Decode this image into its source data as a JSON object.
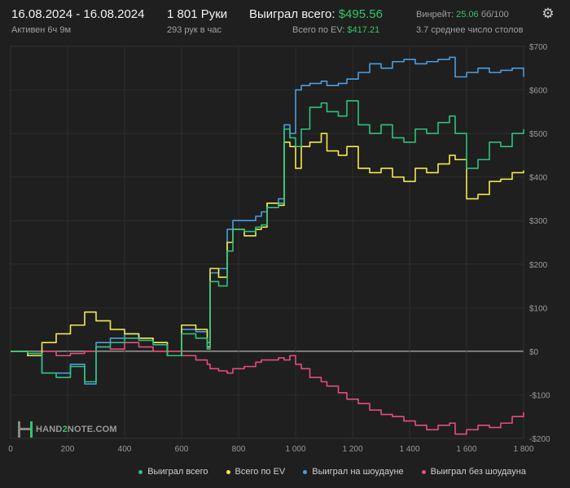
{
  "header": {
    "date_range": "16.08.2024 - 16.08.2024",
    "active": "Активен 6ч 9м",
    "hands": "1 801 Руки",
    "hands_per_hour": "293 рук в час",
    "won_total_label": "Выиграл всего:",
    "won_total_value": "$495.56",
    "ev_total_label": "Всего по EV:",
    "ev_total_value": "$417.21",
    "winrate_label": "Винрейт:",
    "winrate_value": "25.06",
    "winrate_unit": "бб/100",
    "avg_tables": "3.7 среднее число столов",
    "settings_icon": "gear-icon"
  },
  "logo": {
    "text_a": "HAND",
    "text_b": "2",
    "text_c": "NOTE.COM"
  },
  "colors": {
    "won_total": "#2ec27e",
    "ev_total": "#f3ea4a",
    "showdown": "#4a9ee0",
    "non_showdown": "#e64d7c",
    "zero_line": "#d8d8d8"
  },
  "chart_data": {
    "type": "line",
    "xlabel": "",
    "ylabel": "",
    "xlim": [
      0,
      1800
    ],
    "ylim": [
      -200,
      700
    ],
    "x_ticks": [
      0,
      200,
      400,
      600,
      800,
      1000,
      1200,
      1400,
      1600,
      1800
    ],
    "x_tick_labels": [
      "0",
      "200",
      "400",
      "600",
      "800",
      "1 000",
      "1 200",
      "1 400",
      "1 600",
      "1 800"
    ],
    "y_ticks": [
      -200,
      -100,
      0,
      100,
      200,
      300,
      400,
      500,
      600,
      700
    ],
    "y_tick_labels": [
      "-$200",
      "-$100",
      "$0",
      "$100",
      "$200",
      "$300",
      "$400",
      "$500",
      "$600",
      "$700"
    ],
    "legend_position": "bottom-right",
    "grid": true,
    "series": [
      {
        "name": "Выиграл всего",
        "x": [
          0,
          60,
          110,
          160,
          210,
          260,
          300,
          350,
          400,
          450,
          500,
          550,
          600,
          650,
          690,
          700,
          730,
          760,
          780,
          820,
          860,
          880,
          900,
          940,
          960,
          980,
          1000,
          1020,
          1050,
          1090,
          1110,
          1150,
          1180,
          1220,
          1260,
          1300,
          1340,
          1380,
          1420,
          1460,
          1500,
          1540,
          1560,
          1600,
          1640,
          1680,
          1720,
          1760,
          1800
        ],
        "values": [
          0,
          -5,
          -50,
          -60,
          -35,
          -70,
          10,
          20,
          30,
          25,
          15,
          -10,
          40,
          30,
          5,
          160,
          150,
          230,
          280,
          275,
          285,
          290,
          330,
          340,
          510,
          490,
          470,
          510,
          560,
          570,
          550,
          540,
          575,
          520,
          500,
          520,
          490,
          480,
          510,
          500,
          525,
          540,
          500,
          420,
          440,
          480,
          470,
          500,
          510
        ]
      },
      {
        "name": "Всего по EV",
        "x": [
          0,
          60,
          110,
          160,
          210,
          260,
          300,
          350,
          400,
          450,
          500,
          550,
          600,
          650,
          690,
          700,
          730,
          760,
          780,
          820,
          860,
          880,
          900,
          940,
          960,
          980,
          1000,
          1020,
          1050,
          1090,
          1110,
          1150,
          1180,
          1220,
          1260,
          1300,
          1340,
          1380,
          1420,
          1460,
          1500,
          1540,
          1560,
          1600,
          1640,
          1680,
          1720,
          1760,
          1800
        ],
        "values": [
          0,
          -10,
          20,
          40,
          60,
          90,
          70,
          50,
          40,
          30,
          20,
          -10,
          60,
          50,
          10,
          190,
          170,
          250,
          280,
          265,
          280,
          285,
          340,
          335,
          480,
          470,
          420,
          470,
          480,
          500,
          460,
          450,
          470,
          420,
          410,
          420,
          400,
          390,
          420,
          410,
          430,
          450,
          440,
          350,
          360,
          390,
          395,
          410,
          415
        ]
      },
      {
        "name": "Выиграл на шоудауне",
        "x": [
          0,
          60,
          110,
          160,
          210,
          260,
          300,
          350,
          400,
          450,
          500,
          550,
          600,
          650,
          690,
          700,
          730,
          760,
          780,
          820,
          860,
          880,
          900,
          940,
          960,
          980,
          1000,
          1020,
          1050,
          1090,
          1110,
          1150,
          1180,
          1220,
          1260,
          1300,
          1340,
          1380,
          1420,
          1460,
          1500,
          1540,
          1560,
          1600,
          1640,
          1680,
          1720,
          1760,
          1800
        ],
        "values": [
          0,
          -5,
          -50,
          -50,
          -30,
          -75,
          20,
          30,
          40,
          30,
          20,
          -10,
          50,
          45,
          20,
          180,
          190,
          280,
          300,
          300,
          310,
          320,
          340,
          350,
          520,
          500,
          600,
          610,
          615,
          620,
          610,
          615,
          625,
          640,
          660,
          650,
          665,
          670,
          660,
          665,
          670,
          675,
          630,
          640,
          650,
          640,
          645,
          650,
          630
        ]
      },
      {
        "name": "Выиграл без шоудауна",
        "x": [
          0,
          60,
          110,
          160,
          210,
          260,
          300,
          350,
          400,
          450,
          500,
          550,
          600,
          650,
          690,
          700,
          730,
          760,
          780,
          820,
          860,
          880,
          900,
          940,
          960,
          980,
          1000,
          1020,
          1050,
          1090,
          1110,
          1150,
          1180,
          1220,
          1260,
          1300,
          1340,
          1380,
          1420,
          1460,
          1500,
          1540,
          1560,
          1600,
          1640,
          1680,
          1720,
          1760,
          1800
        ],
        "values": [
          0,
          -10,
          0,
          -10,
          -5,
          0,
          10,
          5,
          20,
          10,
          0,
          0,
          -10,
          -20,
          -30,
          -40,
          -45,
          -50,
          -40,
          -35,
          -25,
          -20,
          -20,
          -15,
          -20,
          -10,
          -30,
          -40,
          -60,
          -70,
          -80,
          -95,
          -110,
          -120,
          -135,
          -145,
          -150,
          -160,
          -170,
          -180,
          -170,
          -165,
          -190,
          -180,
          -170,
          -175,
          -165,
          -150,
          -140
        ]
      }
    ]
  }
}
